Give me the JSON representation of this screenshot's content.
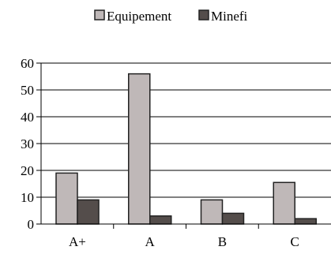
{
  "chart_data": {
    "type": "bar",
    "title": "",
    "xlabel": "",
    "ylabel": "",
    "categories": [
      "A+",
      "A",
      "B",
      "C"
    ],
    "series": [
      {
        "name": "Equipement",
        "values": [
          19,
          56,
          9,
          15.5
        ],
        "color": "#bfb8b8"
      },
      {
        "name": "Minefi",
        "values": [
          9,
          3,
          4,
          2
        ],
        "color": "#544d4b"
      }
    ],
    "ylim": [
      0,
      60
    ],
    "yticks": [
      0,
      10,
      20,
      30,
      40,
      50,
      60
    ],
    "grid": true,
    "legend_position": "top-center"
  }
}
